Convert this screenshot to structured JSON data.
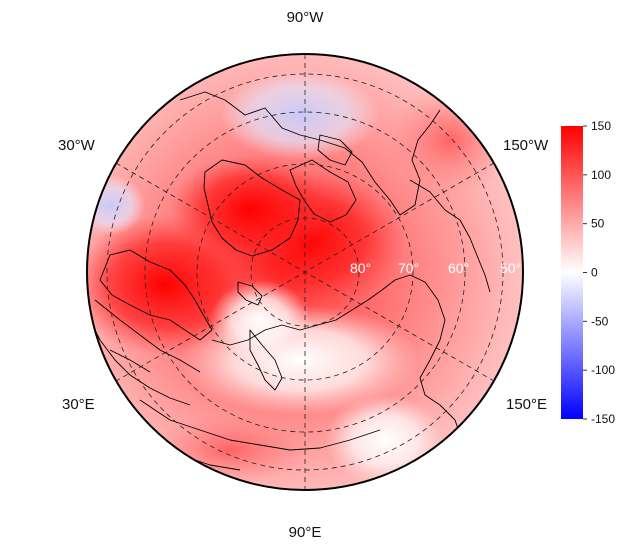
{
  "map": {
    "projection": "north polar stereographic",
    "longitude_labels": {
      "top": "90°W",
      "upper_left": "30°W",
      "upper_right": "150°W",
      "lower_left": "30°E",
      "lower_right": "150°E",
      "bottom": "90°E"
    },
    "latitude_labels": [
      "80°",
      "70°",
      "60°",
      "50°"
    ],
    "field_description_colors": {
      "strong_positive": "#ff0000",
      "neutral": "#ffffff",
      "strong_negative": "#0000e6"
    }
  },
  "colorbar": {
    "range": [
      -150,
      150
    ],
    "ticks": [
      "150",
      "100",
      "50",
      "0",
      "-50",
      "-100",
      "-150"
    ],
    "colors": [
      "#0000ff",
      "#ffffff",
      "#ff0000"
    ]
  }
}
